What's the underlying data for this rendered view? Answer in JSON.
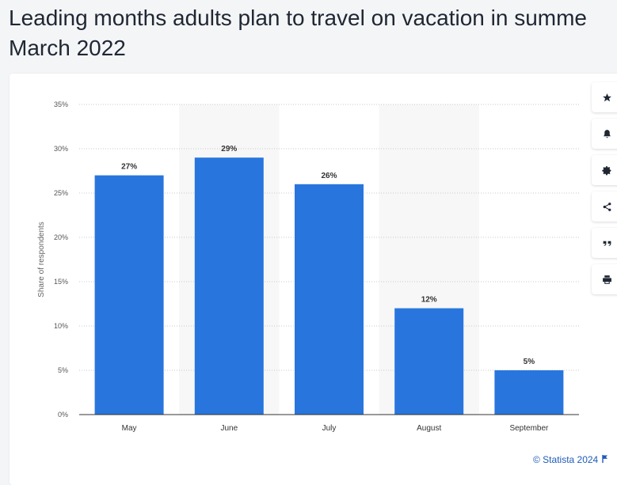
{
  "header": {
    "title": "Leading months adults plan to travel on vacation in summe",
    "subtitle": "March 2022"
  },
  "chart_data": {
    "type": "bar",
    "categories": [
      "May",
      "June",
      "July",
      "August",
      "September"
    ],
    "values": [
      27,
      29,
      26,
      12,
      5
    ],
    "value_labels": [
      "27%",
      "29%",
      "26%",
      "12%",
      "5%"
    ],
    "ylabel": "Share of respondents",
    "ylim": [
      0,
      35
    ],
    "yticks": [
      "0%",
      "5%",
      "10%",
      "15%",
      "20%",
      "25%",
      "30%",
      "35%"
    ],
    "grid": true,
    "bar_color": "#2876dd"
  },
  "toolbar": {
    "icons": [
      "star-icon",
      "bell-icon",
      "gear-icon",
      "share-icon",
      "quote-icon",
      "print-icon"
    ]
  },
  "footer": {
    "credit": "© Statista 2024"
  }
}
